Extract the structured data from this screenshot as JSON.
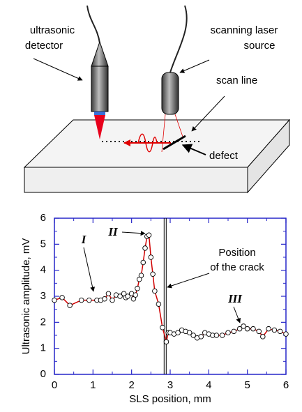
{
  "diagram": {
    "detector_label": [
      "ultrasonic",
      "detector"
    ],
    "source_label": [
      "scanning laser",
      "source"
    ],
    "scan_line_label": "scan line",
    "defect_label": "defect"
  },
  "chart_data": {
    "type": "line",
    "x_label": "SLS position, mm",
    "y_label": "Ultrasonic amplitude, mV",
    "xlim": [
      0,
      6
    ],
    "ylim": [
      0,
      6
    ],
    "xticks": [
      0,
      1,
      2,
      3,
      4,
      5,
      6
    ],
    "yticks": [
      0,
      1,
      2,
      3,
      4,
      5,
      6
    ],
    "axis_color": "#2626c8",
    "series": [
      {
        "color": "#d00000",
        "x": [
          0,
          0.2,
          0.4,
          0.7,
          0.9,
          1.1,
          1.2,
          1.3,
          1.4,
          1.5,
          1.6,
          1.7,
          1.8,
          1.85,
          1.9,
          2.0,
          2.05,
          2.1,
          2.15,
          2.2,
          2.25,
          2.3,
          2.35,
          2.4,
          2.45,
          2.5,
          2.55,
          2.6,
          2.7,
          2.8,
          2.9,
          2.95,
          3.0,
          3.1,
          3.2,
          3.3,
          3.4,
          3.5,
          3.6,
          3.7,
          3.8,
          3.9,
          4.0,
          4.1,
          4.2,
          4.35,
          4.5,
          4.65,
          4.8,
          4.9,
          5.0,
          5.15,
          5.3,
          5.4,
          5.55,
          5.7,
          5.85,
          6.0
        ],
        "values": [
          2.85,
          2.95,
          2.65,
          2.85,
          2.85,
          2.85,
          2.85,
          2.9,
          3.1,
          2.85,
          3.05,
          3.0,
          3.1,
          2.95,
          3.0,
          3.1,
          2.9,
          3.05,
          3.3,
          3.65,
          3.8,
          4.3,
          4.85,
          5.3,
          5.35,
          4.5,
          3.85,
          3.2,
          2.7,
          1.8,
          1.25,
          1.6,
          1.6,
          1.55,
          1.6,
          1.7,
          1.65,
          1.6,
          1.5,
          1.4,
          1.45,
          1.6,
          1.55,
          1.5,
          1.5,
          1.5,
          1.6,
          1.65,
          1.75,
          1.85,
          1.75,
          1.75,
          1.65,
          1.45,
          1.75,
          1.7,
          1.65,
          1.55
        ]
      }
    ],
    "crack_x": 2.87,
    "annotations": [
      "I",
      "II",
      "III",
      "Position",
      "of the crack"
    ]
  }
}
